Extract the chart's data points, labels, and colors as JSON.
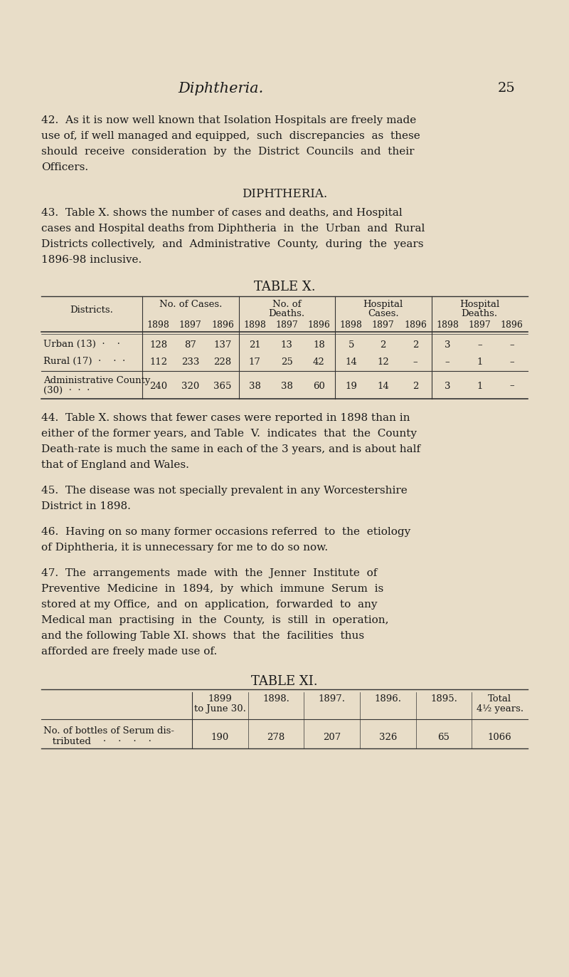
{
  "bg_color": "#e8ddc8",
  "text_color": "#1a1a1a",
  "page_title": "Diphtheria.",
  "page_number": "25",
  "para42_lines": [
    "42.  As it is now well known that Isolation Hospitals are freely made",
    "use of, if well managed and equipped,  such  discrepancies  as  these",
    "should  receive  consideration  by  the  District  Councils  and  their",
    "Officers."
  ],
  "section_header": "DIPHTHERIA.",
  "para43_lines": [
    "43.  Table X. shows the number of cases and deaths, and Hospital",
    "cases and Hospital deaths from Diphtheria  in  the  Urban  and  Rural",
    "Districts collectively,  and  Administrative  County,  during  the  years",
    "1896-98 inclusive."
  ],
  "table_x_title": "TABLE X.",
  "table_x_col_headers": [
    "No. of Cases.",
    "No. of\nDeaths.",
    "Hospital\nCases.",
    "Hospital\nDeaths."
  ],
  "table_x_year_headers": [
    "1898",
    "1897",
    "1896",
    "1898",
    "1897",
    "1896",
    "1898",
    "1897",
    "1896",
    "1898",
    "1897",
    "1896"
  ],
  "table_x_rows": [
    [
      "Urban (13)  ·    ·",
      "128",
      "87",
      "137",
      "21",
      "13",
      "18",
      "5",
      "2",
      "2",
      "3",
      "–",
      "–"
    ],
    [
      "Rural (17)  ·    ·  ·",
      "112",
      "233",
      "228",
      "17",
      "25",
      "42",
      "14",
      "12",
      "–",
      "–",
      "1",
      "–"
    ],
    [
      "Administrative County\n(30)  ·  ·  ·",
      "240",
      "320",
      "365",
      "38",
      "38",
      "60",
      "19",
      "14",
      "2",
      "3",
      "1",
      "–"
    ]
  ],
  "para44_lines": [
    "44.  Table X. shows that fewer cases were reported in 1898 than in",
    "either of the former years, and Table  V.  indicates  that  the  County",
    "Death-rate is much the same in each of the 3 years, and is about half",
    "that of England and Wales."
  ],
  "para45_lines": [
    "45.  The disease was not specially prevalent in any Worcestershire",
    "District in 1898."
  ],
  "para46_lines": [
    "46.  Having on so many former occasions referred  to  the  etiology",
    "of Diphtheria, it is unnecessary for me to do so now."
  ],
  "para47_lines": [
    "47.  The  arrangements  made  with  the  Jenner  Institute  of",
    "Preventive  Medicine  in  1894,  by  which  immune  Serum  is",
    "stored at my Office,  and  on  application,  forwarded  to  any",
    "Medical man  practising  in  the  County,  is  still  in  operation,",
    "and the following Table XI. shows  that  the  facilities  thus",
    "afforded are freely made use of."
  ],
  "table_xi_title": "TABLE XI.",
  "table_xi_col_headers": [
    "1899\nto June 30.",
    "1898.",
    "1897.",
    "1896.",
    "1895.",
    "Total\n4½ years."
  ],
  "table_xi_row_label_line1": "No. of bottles of Serum dis-",
  "table_xi_row_label_line2": "   tributed    ·    ·    ·    ·",
  "table_xi_values": [
    "190",
    "278",
    "207",
    "326",
    "65",
    "1066"
  ]
}
